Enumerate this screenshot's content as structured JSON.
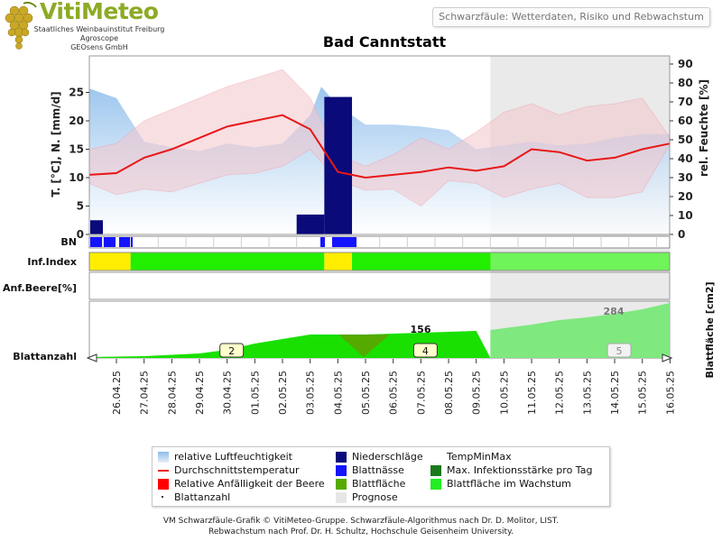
{
  "logo": {
    "name": "VitiMeteo",
    "lines": [
      "Staatliches Weinbauinstitut Freiburg",
      "Agroscope",
      "GEOsens GmbH"
    ]
  },
  "header": {
    "subtitle": "Schwarzfäule: Wetterdaten, Risiko und Rebwachstum"
  },
  "colors": {
    "humidity": "#a8cdf0",
    "precip": "#0a0a7a",
    "temp": "#e81818",
    "temp_band": "#f4c6cc",
    "leaf_wetness": "#1414ff",
    "max_infection": "#1a7a1a",
    "berry": "#ff0000",
    "leaf_area": "#55aa00",
    "leaf_growth": "#22ee22",
    "forecast": "#e6e6e6",
    "index_low": "#22ee00",
    "index_mid": "#ffee00"
  },
  "chart_data": {
    "type": "line",
    "title": "Bad Canntstatt",
    "dates": [
      "26.04.25",
      "27.04.25",
      "28.04.25",
      "29.04.25",
      "30.04.25",
      "01.05.25",
      "02.05.25",
      "03.05.25",
      "04.05.25",
      "05.05.25",
      "06.05.25",
      "07.05.25",
      "08.05.25",
      "09.05.25",
      "10.05.25",
      "11.05.25",
      "12.05.25",
      "13.05.25",
      "14.05.25",
      "15.05.25",
      "16.05.25"
    ],
    "forecast_from": "10.05.25",
    "ylabel_left": "T. [°C], N. [mm/d]",
    "ylabel_right": "rel. Feuchte [%]",
    "ylim_left": [
      0,
      30
    ],
    "ylim_right": [
      0,
      90
    ],
    "yticks_left": [
      0,
      5,
      10,
      15,
      20,
      25
    ],
    "yticks_right": [
      0,
      10,
      20,
      30,
      40,
      50,
      60,
      70,
      80,
      90
    ],
    "humidity_x": [
      -1,
      0,
      1,
      2,
      3,
      4,
      5,
      6,
      7,
      7.4,
      8,
      9,
      10,
      11,
      12,
      13,
      14,
      15,
      16,
      17,
      18,
      19,
      20
    ],
    "humidity": [
      77,
      72,
      49,
      46,
      44,
      48,
      46,
      48,
      63,
      78,
      68,
      58,
      58,
      57,
      55,
      45,
      47,
      49,
      47,
      48,
      51,
      53,
      53
    ],
    "temp_mean": [
      10.5,
      10.8,
      13.5,
      15,
      17,
      19,
      20,
      21,
      18.5,
      11,
      10,
      10.5,
      11,
      11.8,
      11.2,
      12,
      15,
      14.5,
      13,
      13.5,
      15,
      16
    ],
    "temp_max": [
      15,
      16,
      20,
      22,
      24,
      26,
      27.5,
      29,
      24,
      14,
      12,
      14,
      17,
      15,
      18,
      21.5,
      23,
      21,
      22.5,
      23,
      24,
      17
    ],
    "temp_min": [
      9,
      7,
      8,
      7.5,
      9,
      10.5,
      10.8,
      12,
      15,
      9.5,
      7.8,
      8,
      5,
      9.5,
      9,
      6.5,
      8,
      9,
      6.5,
      6.5,
      7.5,
      16
    ],
    "precip": [
      2.5,
      0,
      0,
      0,
      0,
      0,
      0,
      0,
      3.5,
      24.2,
      0,
      0,
      0,
      0,
      0,
      0,
      0,
      0,
      0,
      0,
      0
    ],
    "leaf_wetness_dates": [
      "26.04.25",
      "27.04.25",
      "04.05.25"
    ],
    "rows": {
      "bn": "BN",
      "inf": "Inf.Index",
      "anf": "Anf.Beere[%]",
      "blatt": "Blattanzahl"
    },
    "inf_index": [
      {
        "from": "26.04.25",
        "to": "27.04.25",
        "level": "mid"
      },
      {
        "from": "27.04.25",
        "to": "04.05.25",
        "level": "low"
      },
      {
        "from": "04.05.25",
        "to": "05.05.25",
        "level": "mid"
      },
      {
        "from": "05.05.25",
        "to": "16.05.25",
        "level": "low"
      }
    ],
    "leaf_area_label": "Blattfläche [cm2]",
    "leaf_area_values": [
      {
        "date": "07.05.25",
        "value": "156"
      },
      {
        "date": "14.05.25",
        "value": "284"
      }
    ],
    "leaf_counts": [
      {
        "date": "30.04.25",
        "value": "2"
      },
      {
        "date": "07.05.25",
        "value": "4"
      },
      {
        "date": "14.05.25",
        "value": "5"
      }
    ]
  },
  "legend": [
    {
      "label": "relative Luftfeuchtigkeit",
      "icon": "humidity-gradient"
    },
    {
      "label": "Niederschläge",
      "icon": "precip-box"
    },
    {
      "label": "TempMinMax",
      "icon": "none"
    },
    {
      "label": "Durchschnittstemperatur",
      "icon": "red-line"
    },
    {
      "label": "Blattnässe",
      "icon": "blue-box"
    },
    {
      "label": "Max. Infektionsstärke pro Tag",
      "icon": "darkgreen-box"
    },
    {
      "label": "Relative Anfälligkeit der Beere",
      "icon": "red-box"
    },
    {
      "label": "Blattfläche",
      "icon": "green-box"
    },
    {
      "label": "Blattfläche im Wachstum",
      "icon": "lightgreen-box"
    },
    {
      "label": "Blattanzahl",
      "icon": "dot"
    },
    {
      "label": "Prognose",
      "icon": "grey-box"
    }
  ],
  "footer": {
    "line1": "VM Schwarzfäule-Grafik © VitiMeteo-Gruppe. Schwarzfäule-Algorithmus nach Dr. D. Molitor, LIST.",
    "line2": "Rebwachstum nach Prof. Dr. H. Schultz, Hochschule Geisenheim University."
  }
}
